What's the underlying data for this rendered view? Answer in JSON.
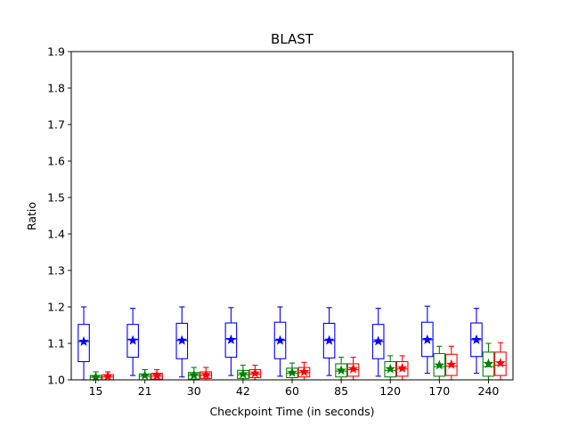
{
  "chart_data": {
    "type": "boxplot",
    "title": "BLAST",
    "xlabel": "Checkpoint Time (in seconds)",
    "ylabel": "Ratio",
    "ylim": [
      1.0,
      1.9
    ],
    "yticks": [
      "1.0",
      "1.1",
      "1.2",
      "1.3",
      "1.4",
      "1.5",
      "1.6",
      "1.7",
      "1.8",
      "1.9"
    ],
    "categories": [
      "15",
      "21",
      "30",
      "42",
      "60",
      "85",
      "120",
      "170",
      "240"
    ],
    "grid": false,
    "legend": "none",
    "mean_marker": "star",
    "series": [
      {
        "color": "#0000ff",
        "boxes": [
          {
            "whislo": 1.0,
            "q1": 1.05,
            "med": 1.105,
            "q3": 1.152,
            "whishi": 1.2,
            "mean": 1.105
          },
          {
            "whislo": 1.012,
            "q1": 1.062,
            "med": 1.11,
            "q3": 1.152,
            "whishi": 1.196,
            "mean": 1.108
          },
          {
            "whislo": 1.008,
            "q1": 1.058,
            "med": 1.108,
            "q3": 1.155,
            "whishi": 1.2,
            "mean": 1.108
          },
          {
            "whislo": 1.012,
            "q1": 1.062,
            "med": 1.112,
            "q3": 1.156,
            "whishi": 1.198,
            "mean": 1.11
          },
          {
            "whislo": 1.01,
            "q1": 1.058,
            "med": 1.108,
            "q3": 1.158,
            "whishi": 1.2,
            "mean": 1.108
          },
          {
            "whislo": 1.012,
            "q1": 1.06,
            "med": 1.108,
            "q3": 1.155,
            "whishi": 1.198,
            "mean": 1.108
          },
          {
            "whislo": 1.01,
            "q1": 1.058,
            "med": 1.105,
            "q3": 1.152,
            "whishi": 1.196,
            "mean": 1.106
          },
          {
            "whislo": 1.018,
            "q1": 1.064,
            "med": 1.11,
            "q3": 1.158,
            "whishi": 1.202,
            "mean": 1.11
          },
          {
            "whislo": 1.018,
            "q1": 1.064,
            "med": 1.11,
            "q3": 1.156,
            "whishi": 1.196,
            "mean": 1.11
          }
        ]
      },
      {
        "color": "#008000",
        "boxes": [
          {
            "whislo": 1.0,
            "q1": 1.0,
            "med": 1.007,
            "q3": 1.012,
            "whishi": 1.022,
            "mean": 1.008
          },
          {
            "whislo": 1.0,
            "q1": 1.0,
            "med": 1.01,
            "q3": 1.016,
            "whishi": 1.028,
            "mean": 1.012
          },
          {
            "whislo": 1.0,
            "q1": 1.002,
            "med": 1.012,
            "q3": 1.02,
            "whishi": 1.034,
            "mean": 1.013
          },
          {
            "whislo": 1.0,
            "q1": 1.004,
            "med": 1.014,
            "q3": 1.026,
            "whishi": 1.04,
            "mean": 1.016
          },
          {
            "whislo": 1.0,
            "q1": 1.006,
            "med": 1.018,
            "q3": 1.032,
            "whishi": 1.046,
            "mean": 1.02
          },
          {
            "whislo": 1.0,
            "q1": 1.008,
            "med": 1.024,
            "q3": 1.044,
            "whishi": 1.062,
            "mean": 1.026
          },
          {
            "whislo": 1.0,
            "q1": 1.008,
            "med": 1.026,
            "q3": 1.05,
            "whishi": 1.066,
            "mean": 1.03
          },
          {
            "whislo": 1.0,
            "q1": 1.01,
            "med": 1.036,
            "q3": 1.072,
            "whishi": 1.092,
            "mean": 1.04
          },
          {
            "whislo": 1.0,
            "q1": 1.01,
            "med": 1.036,
            "q3": 1.076,
            "whishi": 1.1,
            "mean": 1.044
          }
        ]
      },
      {
        "color": "#ff0000",
        "boxes": [
          {
            "whislo": 1.0,
            "q1": 1.0,
            "med": 1.008,
            "q3": 1.014,
            "whishi": 1.022,
            "mean": 1.01
          },
          {
            "whislo": 1.0,
            "q1": 1.002,
            "med": 1.01,
            "q3": 1.018,
            "whishi": 1.028,
            "mean": 1.012
          },
          {
            "whislo": 1.0,
            "q1": 1.004,
            "med": 1.012,
            "q3": 1.022,
            "whishi": 1.034,
            "mean": 1.014
          },
          {
            "whislo": 1.0,
            "q1": 1.006,
            "med": 1.016,
            "q3": 1.028,
            "whishi": 1.04,
            "mean": 1.018
          },
          {
            "whislo": 1.0,
            "q1": 1.008,
            "med": 1.02,
            "q3": 1.034,
            "whishi": 1.048,
            "mean": 1.022
          },
          {
            "whislo": 1.0,
            "q1": 1.01,
            "med": 1.028,
            "q3": 1.044,
            "whishi": 1.062,
            "mean": 1.03
          },
          {
            "whislo": 1.0,
            "q1": 1.01,
            "med": 1.03,
            "q3": 1.05,
            "whishi": 1.066,
            "mean": 1.032
          },
          {
            "whislo": 1.0,
            "q1": 1.012,
            "med": 1.038,
            "q3": 1.07,
            "whishi": 1.092,
            "mean": 1.042
          },
          {
            "whislo": 1.0,
            "q1": 1.012,
            "med": 1.04,
            "q3": 1.076,
            "whishi": 1.102,
            "mean": 1.046
          }
        ]
      }
    ]
  }
}
